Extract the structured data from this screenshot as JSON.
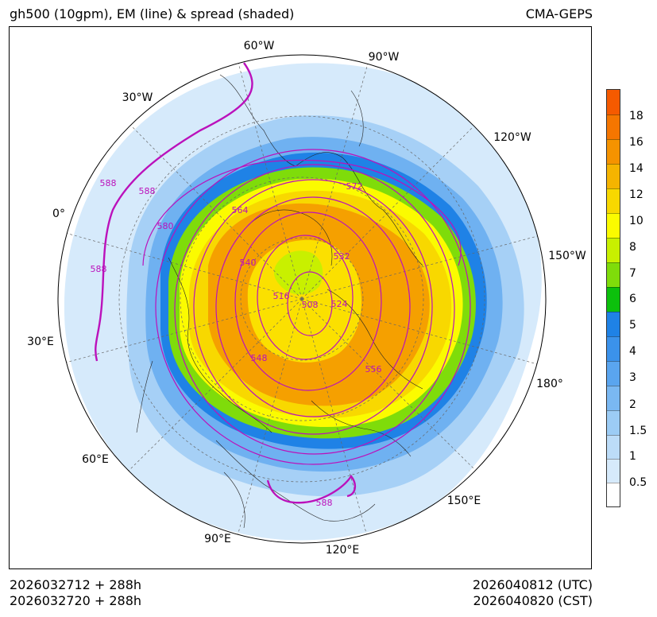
{
  "header": {
    "title_left": "gh500 (10gpm), EM (line) & spread (shaded)",
    "title_right": "CMA-GEPS"
  },
  "footer": {
    "init_utc": "2026032712 + 288h",
    "init_cst": "2026032720 + 288h",
    "valid_utc": "2026040812 (UTC)",
    "valid_cst": "2026040820 (CST)"
  },
  "longitude_labels": [
    "60°W",
    "90°W",
    "30°W",
    "120°W",
    "0°",
    "150°W",
    "30°E",
    "180°",
    "60°E",
    "150°E",
    "90°E",
    "120°E"
  ],
  "contour_labels": [
    "508",
    "516",
    "524",
    "532",
    "540",
    "548",
    "556",
    "564",
    "572",
    "580",
    "588",
    "588",
    "588",
    "588"
  ],
  "colorbar": {
    "labels": [
      "0.5",
      "1",
      "1.5",
      "2",
      "3",
      "4",
      "5",
      "6",
      "7",
      "8",
      "10",
      "12",
      "14",
      "16",
      "18"
    ],
    "colors": [
      "#ffffff",
      "#d6eafb",
      "#bcdcf8",
      "#9cccf5",
      "#7ab8f2",
      "#5aa5ef",
      "#3b92eb",
      "#1f82e6",
      "#0cc00c",
      "#7fdc0a",
      "#c8f000",
      "#fbfb00",
      "#f8d800",
      "#f5b400",
      "#f59300",
      "#f57600",
      "#f55a00"
    ]
  },
  "colors": {
    "contour_line": "#bb11bb",
    "coast": "#222222",
    "grid": "#666666"
  }
}
